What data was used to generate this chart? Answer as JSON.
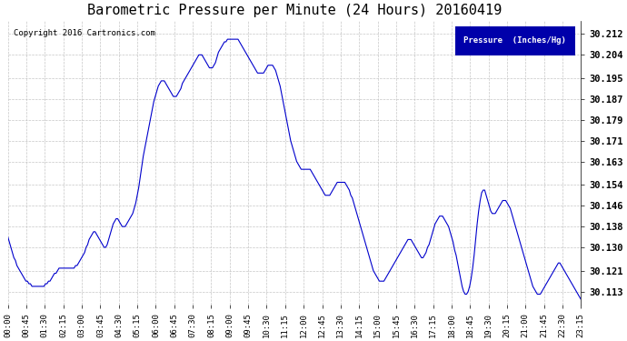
{
  "title": "Barometric Pressure per Minute (24 Hours) 20160419",
  "copyright": "Copyright 2016 Cartronics.com",
  "legend_label": "Pressure  (Inches/Hg)",
  "line_color": "#0000cc",
  "background_color": "#ffffff",
  "grid_color": "#c0c0c0",
  "yticks": [
    30.113,
    30.121,
    30.13,
    30.138,
    30.146,
    30.154,
    30.163,
    30.171,
    30.179,
    30.187,
    30.195,
    30.204,
    30.212
  ],
  "ylim": [
    30.108,
    30.217
  ],
  "xtick_labels": [
    "00:00",
    "00:45",
    "01:30",
    "02:15",
    "03:00",
    "03:45",
    "04:30",
    "05:15",
    "06:00",
    "06:45",
    "07:30",
    "08:15",
    "09:00",
    "09:45",
    "10:30",
    "11:15",
    "12:00",
    "12:45",
    "13:30",
    "14:15",
    "15:00",
    "15:45",
    "16:30",
    "17:15",
    "18:00",
    "18:45",
    "19:30",
    "20:15",
    "21:00",
    "21:45",
    "22:30",
    "23:15"
  ],
  "pressure_data": [
    30.134,
    30.132,
    30.13,
    30.128,
    30.126,
    30.125,
    30.123,
    30.122,
    30.121,
    30.12,
    30.119,
    30.118,
    30.117,
    30.117,
    30.116,
    30.116,
    30.115,
    30.115,
    30.115,
    30.115,
    30.115,
    30.115,
    30.115,
    30.115,
    30.115,
    30.116,
    30.116,
    30.117,
    30.117,
    30.118,
    30.119,
    30.12,
    30.12,
    30.121,
    30.122,
    30.122,
    30.122,
    30.122,
    30.122,
    30.122,
    30.122,
    30.122,
    30.122,
    30.122,
    30.122,
    30.123,
    30.123,
    30.124,
    30.125,
    30.126,
    30.127,
    30.128,
    30.13,
    30.131,
    30.133,
    30.134,
    30.135,
    30.136,
    30.136,
    30.135,
    30.134,
    30.133,
    30.132,
    30.131,
    30.13,
    30.13,
    30.131,
    30.133,
    30.135,
    30.137,
    30.139,
    30.14,
    30.141,
    30.141,
    30.14,
    30.139,
    30.138,
    30.138,
    30.138,
    30.139,
    30.14,
    30.141,
    30.142,
    30.143,
    30.145,
    30.147,
    30.15,
    30.153,
    30.157,
    30.161,
    30.165,
    30.168,
    30.171,
    30.174,
    30.177,
    30.18,
    30.183,
    30.186,
    30.188,
    30.19,
    30.192,
    30.193,
    30.194,
    30.194,
    30.194,
    30.193,
    30.192,
    30.191,
    30.19,
    30.189,
    30.188,
    30.188,
    30.188,
    30.189,
    30.19,
    30.191,
    30.193,
    30.194,
    30.195,
    30.196,
    30.197,
    30.198,
    30.199,
    30.2,
    30.201,
    30.202,
    30.203,
    30.204,
    30.204,
    30.204,
    30.203,
    30.202,
    30.201,
    30.2,
    30.199,
    30.199,
    30.199,
    30.2,
    30.201,
    30.203,
    30.205,
    30.206,
    30.207,
    30.208,
    30.209,
    30.209,
    30.21,
    30.21,
    30.21,
    30.21,
    30.21,
    30.21,
    30.21,
    30.21,
    30.209,
    30.208,
    30.207,
    30.206,
    30.205,
    30.204,
    30.203,
    30.202,
    30.201,
    30.2,
    30.199,
    30.198,
    30.197,
    30.197,
    30.197,
    30.197,
    30.197,
    30.198,
    30.199,
    30.2,
    30.2,
    30.2,
    30.2,
    30.199,
    30.198,
    30.196,
    30.194,
    30.192,
    30.189,
    30.186,
    30.183,
    30.18,
    30.177,
    30.174,
    30.171,
    30.169,
    30.167,
    30.165,
    30.163,
    30.162,
    30.161,
    30.16,
    30.16,
    30.16,
    30.16,
    30.16,
    30.16,
    30.16,
    30.159,
    30.158,
    30.157,
    30.156,
    30.155,
    30.154,
    30.153,
    30.152,
    30.151,
    30.15,
    30.15,
    30.15,
    30.15,
    30.151,
    30.152,
    30.153,
    30.154,
    30.155,
    30.155,
    30.155,
    30.155,
    30.155,
    30.155,
    30.154,
    30.153,
    30.152,
    30.15,
    30.149,
    30.147,
    30.145,
    30.143,
    30.141,
    30.139,
    30.137,
    30.135,
    30.133,
    30.131,
    30.129,
    30.127,
    30.125,
    30.123,
    30.121,
    30.12,
    30.119,
    30.118,
    30.117,
    30.117,
    30.117,
    30.117,
    30.118,
    30.119,
    30.12,
    30.121,
    30.122,
    30.123,
    30.124,
    30.125,
    30.126,
    30.127,
    30.128,
    30.129,
    30.13,
    30.131,
    30.132,
    30.133,
    30.133,
    30.133,
    30.132,
    30.131,
    30.13,
    30.129,
    30.128,
    30.127,
    30.126,
    30.126,
    30.127,
    30.128,
    30.13,
    30.131,
    30.133,
    30.135,
    30.137,
    30.139,
    30.14,
    30.141,
    30.142,
    30.142,
    30.142,
    30.141,
    30.14,
    30.139,
    30.138,
    30.136,
    30.134,
    30.132,
    30.129,
    30.127,
    30.124,
    30.121,
    30.118,
    30.115,
    30.113,
    30.112,
    30.112,
    30.113,
    30.115,
    30.118,
    30.122,
    30.127,
    30.133,
    30.139,
    30.144,
    30.148,
    30.151,
    30.152,
    30.152,
    30.15,
    30.148,
    30.146,
    30.144,
    30.143,
    30.143,
    30.143,
    30.144,
    30.145,
    30.146,
    30.147,
    30.148,
    30.148,
    30.148,
    30.147,
    30.146,
    30.145,
    30.143,
    30.141,
    30.139,
    30.137,
    30.135,
    30.133,
    30.131,
    30.129,
    30.127,
    30.125,
    30.123,
    30.121,
    30.119,
    30.117,
    30.115,
    30.114,
    30.113,
    30.112,
    30.112,
    30.112,
    30.113,
    30.114,
    30.115,
    30.116,
    30.117,
    30.118,
    30.119,
    30.12,
    30.121,
    30.122,
    30.123,
    30.124,
    30.124,
    30.123,
    30.122,
    30.121,
    30.12,
    30.119,
    30.118,
    30.117,
    30.116,
    30.115,
    30.114,
    30.113,
    30.112,
    30.111,
    30.11
  ]
}
